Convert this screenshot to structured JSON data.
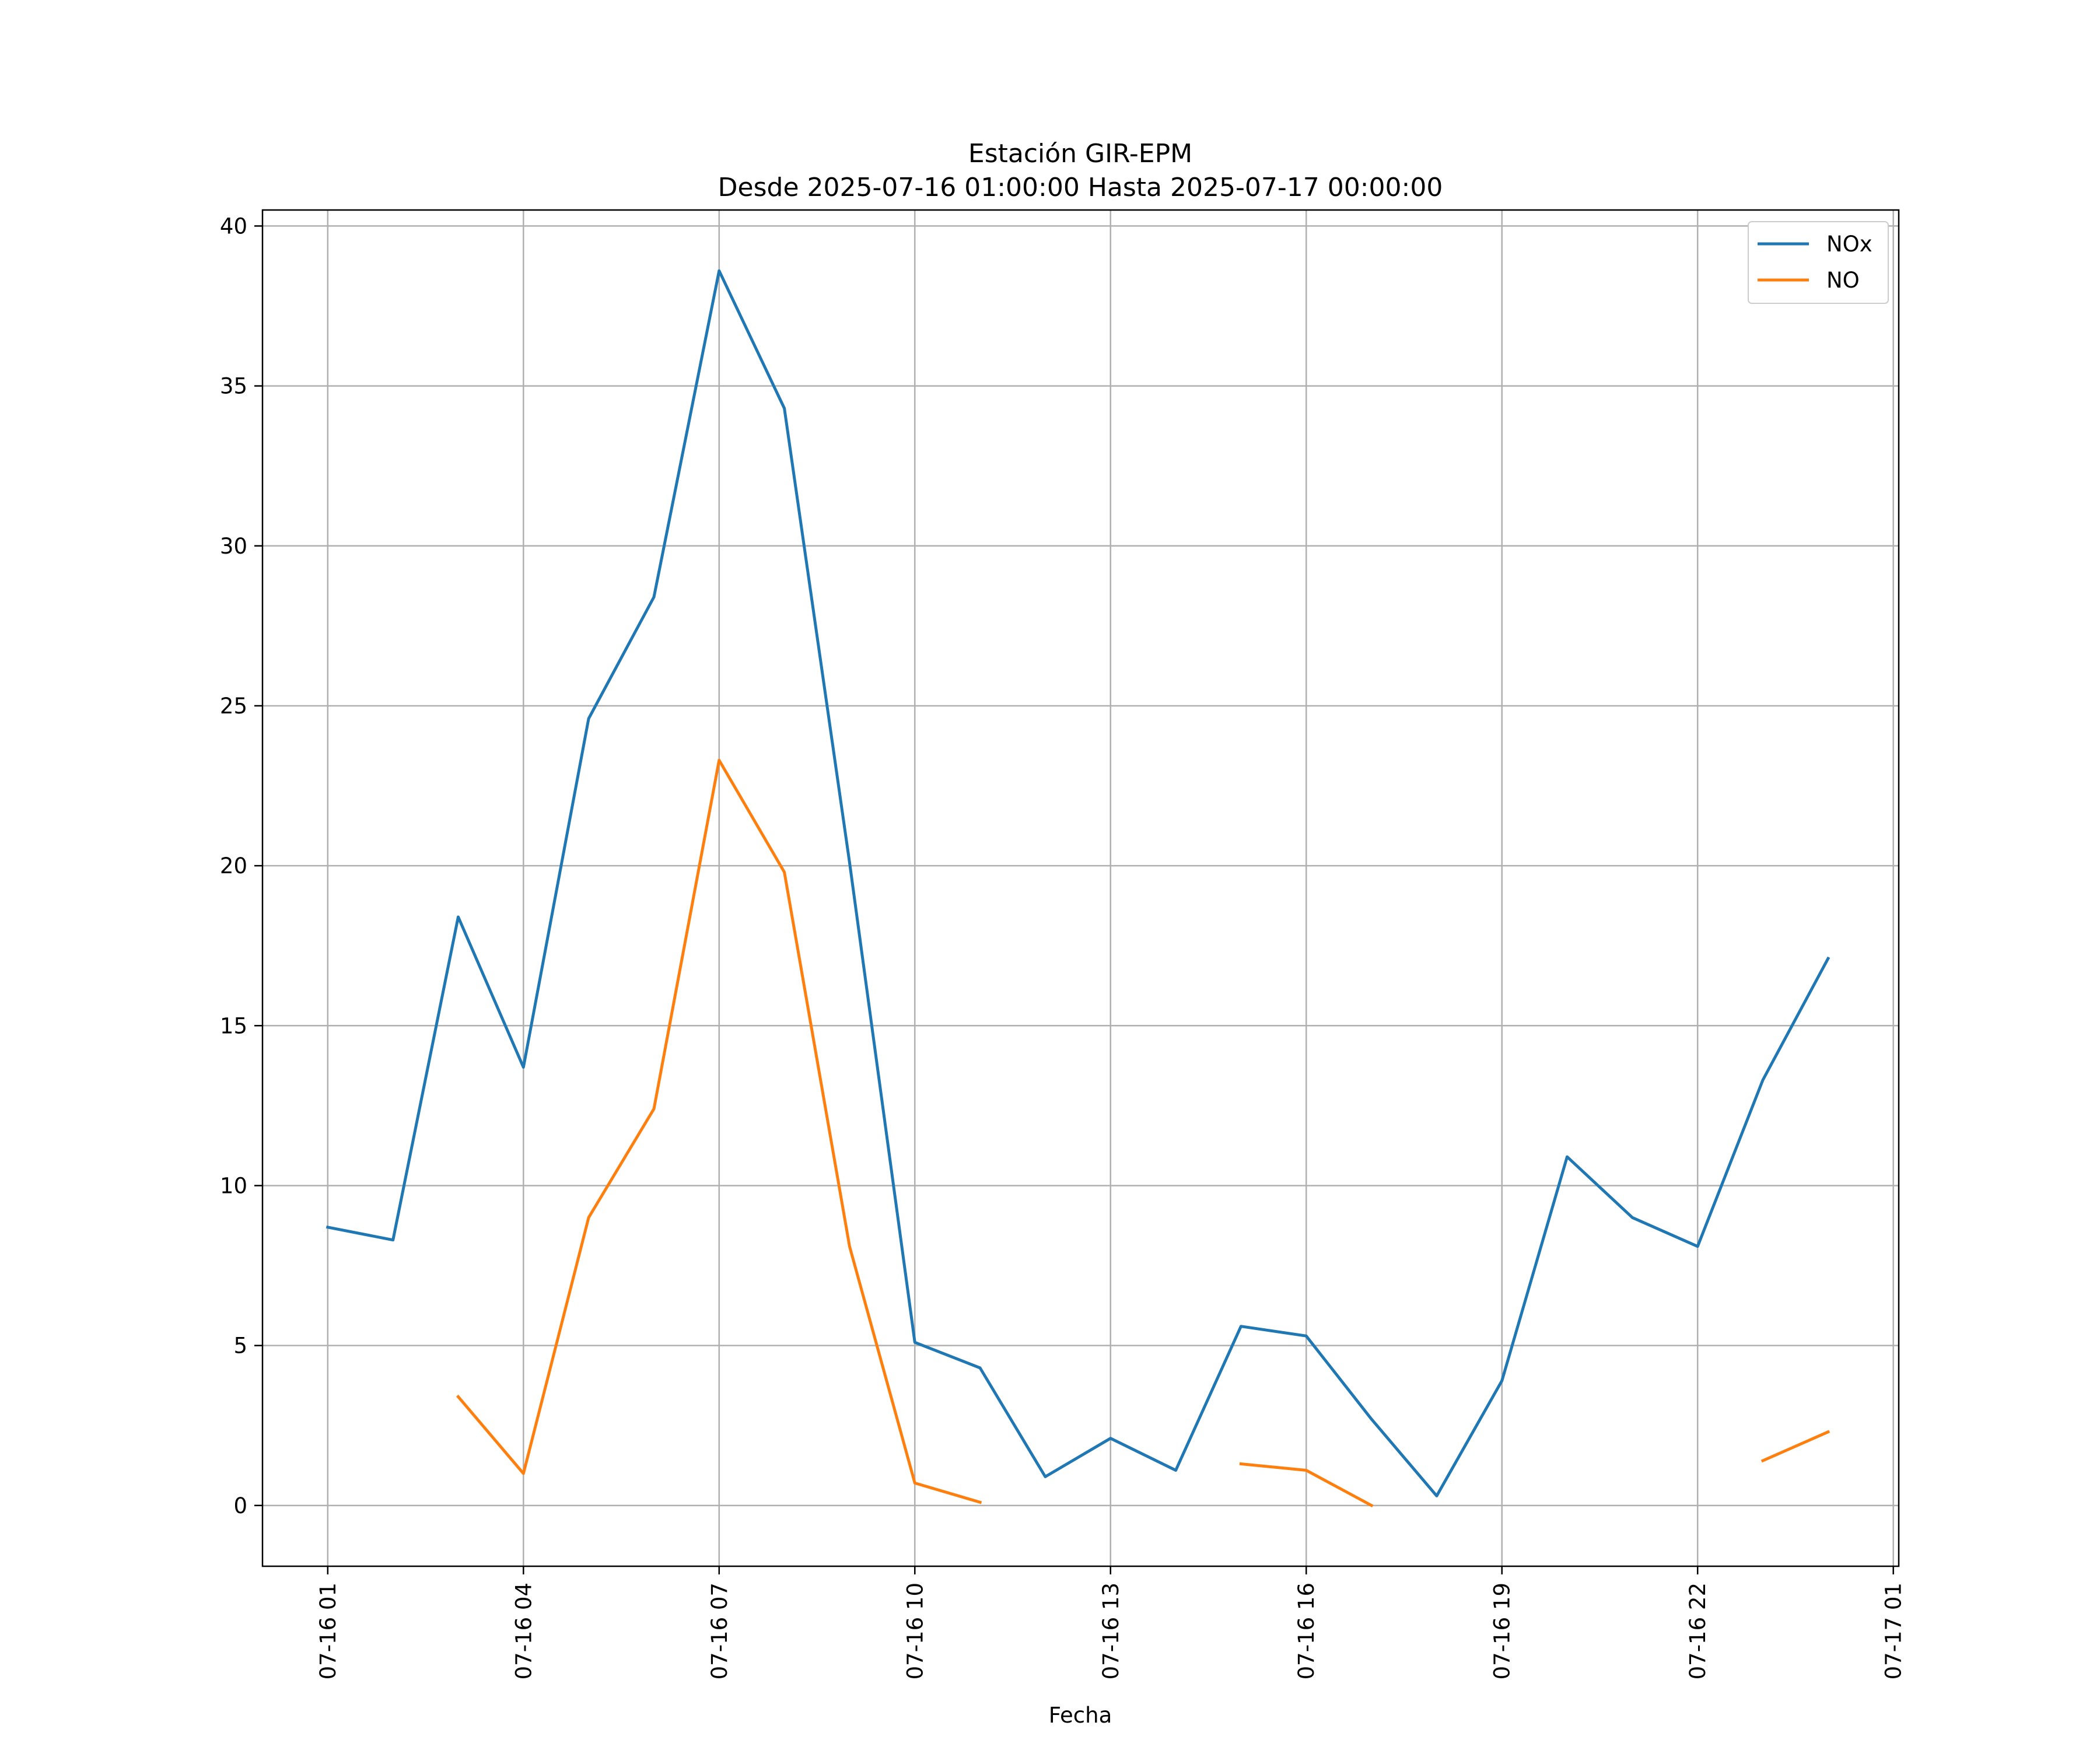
{
  "chart_data": {
    "type": "line",
    "title": "Estación GIR-EPM",
    "subtitle": "Desde 2025-07-16 01:00:00 Hasta 2025-07-17 00:00:00",
    "xlabel": "Fecha",
    "ylabel": "",
    "x": [
      "07-16 01",
      "07-16 02",
      "07-16 03",
      "07-16 04",
      "07-16 05",
      "07-16 06",
      "07-16 07",
      "07-16 08",
      "07-16 09",
      "07-16 10",
      "07-16 11",
      "07-16 12",
      "07-16 13",
      "07-16 14",
      "07-16 15",
      "07-16 16",
      "07-16 17",
      "07-16 18",
      "07-16 19",
      "07-16 20",
      "07-16 21",
      "07-16 22",
      "07-16 23",
      "07-17 00"
    ],
    "xlim": [
      "07-16 00:00",
      "07-17 01:05"
    ],
    "ylim": [
      -1.9,
      40.5
    ],
    "xticks": [
      "07-16 01",
      "07-16 04",
      "07-16 07",
      "07-16 10",
      "07-16 13",
      "07-16 16",
      "07-16 19",
      "07-16 22",
      "07-17 01"
    ],
    "yticks": [
      "0",
      "5",
      "10",
      "15",
      "20",
      "25",
      "30",
      "35",
      "40"
    ],
    "grid": true,
    "legend_position": "top-right",
    "series": [
      {
        "name": "NOx",
        "color": "#1f77b4",
        "values": [
          8.7,
          8.3,
          18.4,
          13.7,
          24.6,
          28.4,
          38.6,
          34.3,
          20.1,
          5.1,
          4.3,
          0.9,
          2.1,
          1.1,
          5.6,
          5.3,
          2.7,
          0.3,
          3.9,
          10.9,
          9.0,
          8.1,
          13.3,
          17.1
        ]
      },
      {
        "name": "NO",
        "color": "#ff7f0e",
        "values": [
          null,
          null,
          3.4,
          1.0,
          9.0,
          12.4,
          23.3,
          19.8,
          8.1,
          0.7,
          0.1,
          null,
          null,
          null,
          1.3,
          1.1,
          0.0,
          null,
          null,
          null,
          null,
          null,
          1.4,
          2.3
        ]
      }
    ]
  }
}
